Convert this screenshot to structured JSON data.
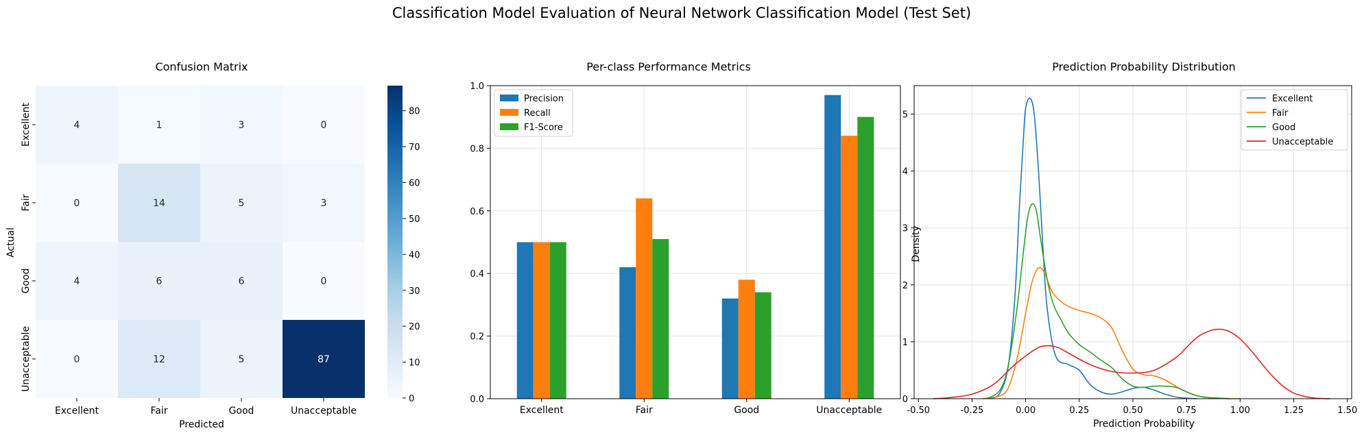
{
  "figure": {
    "title": "Classification Model Evaluation of Neural Network Classification Model (Test Set)"
  },
  "chart_data": [
    {
      "type": "heatmap",
      "title": "Confusion Matrix",
      "xlabel": "Predicted",
      "ylabel": "Actual",
      "classes": [
        "Excellent",
        "Fair",
        "Good",
        "Unacceptable"
      ],
      "matrix": [
        [
          4,
          1,
          3,
          0
        ],
        [
          0,
          14,
          5,
          3
        ],
        [
          4,
          6,
          6,
          0
        ],
        [
          0,
          12,
          5,
          87
        ]
      ],
      "colorbar": {
        "min": 0,
        "max": 87,
        "ticks": [
          0,
          10,
          20,
          30,
          40,
          50,
          60,
          70,
          80
        ],
        "colormap": "Blues"
      }
    },
    {
      "type": "bar",
      "title": "Per-class Performance Metrics",
      "xlabel": "",
      "ylabel": "",
      "categories": [
        "Excellent",
        "Fair",
        "Good",
        "Unacceptable"
      ],
      "ylim": [
        0,
        1.0
      ],
      "yticks": [
        0.0,
        0.2,
        0.4,
        0.6,
        0.8,
        1.0
      ],
      "grid": true,
      "legend": "top-left",
      "series": [
        {
          "name": "Precision",
          "color": "#1f77b4",
          "values": [
            0.5,
            0.42,
            0.32,
            0.97
          ]
        },
        {
          "name": "Recall",
          "color": "#ff7f0e",
          "values": [
            0.5,
            0.64,
            0.38,
            0.84
          ]
        },
        {
          "name": "F1-Score",
          "color": "#2ca02c",
          "values": [
            0.5,
            0.51,
            0.34,
            0.9
          ]
        }
      ]
    },
    {
      "type": "line",
      "title": "Prediction Probability Distribution",
      "xlabel": "Prediction Probability",
      "ylabel": "Density",
      "xlim": [
        -0.52,
        1.52
      ],
      "ylim": [
        0,
        5.5
      ],
      "xticks": [
        -0.5,
        -0.25,
        0.0,
        0.25,
        0.5,
        0.75,
        1.0,
        1.25,
        1.5
      ],
      "yticks": [
        0,
        1,
        2,
        3,
        4,
        5
      ],
      "grid": true,
      "legend": "top-right",
      "series": [
        {
          "name": "Excellent",
          "color": "#1f77b4",
          "x": [
            -0.17,
            -0.12,
            -0.08,
            -0.05,
            -0.03,
            -0.01,
            0.0,
            0.02,
            0.04,
            0.06,
            0.08,
            0.1,
            0.14,
            0.2,
            0.25,
            0.3,
            0.35,
            0.4,
            0.45,
            0.5,
            0.55,
            0.6,
            0.65,
            0.7,
            0.75,
            0.8
          ],
          "y": [
            0.0,
            0.1,
            0.6,
            1.8,
            3.3,
            4.6,
            5.1,
            5.28,
            5.0,
            4.0,
            2.7,
            1.6,
            0.75,
            0.6,
            0.5,
            0.25,
            0.12,
            0.08,
            0.12,
            0.18,
            0.2,
            0.15,
            0.08,
            0.03,
            0.01,
            0.0
          ]
        },
        {
          "name": "Fair",
          "color": "#ff7f0e",
          "x": [
            -0.2,
            -0.12,
            -0.08,
            -0.04,
            0.0,
            0.03,
            0.06,
            0.09,
            0.12,
            0.16,
            0.2,
            0.25,
            0.3,
            0.35,
            0.4,
            0.45,
            0.5,
            0.55,
            0.6,
            0.65,
            0.7,
            0.75,
            0.8,
            0.85,
            0.9,
            0.95,
            1.0
          ],
          "y": [
            0.0,
            0.05,
            0.2,
            0.7,
            1.5,
            2.05,
            2.3,
            2.2,
            1.9,
            1.72,
            1.62,
            1.55,
            1.5,
            1.42,
            1.25,
            0.85,
            0.52,
            0.42,
            0.4,
            0.33,
            0.22,
            0.12,
            0.05,
            0.02,
            0.01,
            0.0,
            0.0
          ]
        },
        {
          "name": "Good",
          "color": "#2ca02c",
          "x": [
            -0.18,
            -0.12,
            -0.08,
            -0.04,
            -0.01,
            0.01,
            0.03,
            0.05,
            0.07,
            0.1,
            0.13,
            0.17,
            0.2,
            0.25,
            0.3,
            0.35,
            0.4,
            0.45,
            0.5,
            0.55,
            0.6,
            0.65,
            0.7,
            0.75,
            0.8,
            0.85,
            0.9,
            0.95
          ],
          "y": [
            0.0,
            0.15,
            0.6,
            1.6,
            2.6,
            3.2,
            3.42,
            3.3,
            2.8,
            2.1,
            1.65,
            1.35,
            1.15,
            0.95,
            0.82,
            0.68,
            0.55,
            0.35,
            0.22,
            0.2,
            0.22,
            0.22,
            0.2,
            0.12,
            0.05,
            0.02,
            0.01,
            0.0
          ]
        },
        {
          "name": "Unacceptable",
          "color": "#d62728",
          "x": [
            -0.43,
            -0.35,
            -0.25,
            -0.15,
            -0.05,
            0.05,
            0.1,
            0.15,
            0.2,
            0.3,
            0.4,
            0.5,
            0.6,
            0.7,
            0.75,
            0.8,
            0.85,
            0.9,
            0.95,
            1.0,
            1.05,
            1.1,
            1.15,
            1.2,
            1.25,
            1.3,
            1.35,
            1.42
          ],
          "y": [
            0.0,
            0.02,
            0.08,
            0.25,
            0.6,
            0.88,
            0.93,
            0.9,
            0.8,
            0.6,
            0.48,
            0.45,
            0.5,
            0.72,
            0.9,
            1.08,
            1.18,
            1.22,
            1.18,
            1.05,
            0.85,
            0.62,
            0.4,
            0.22,
            0.1,
            0.04,
            0.01,
            0.0
          ]
        }
      ]
    }
  ]
}
